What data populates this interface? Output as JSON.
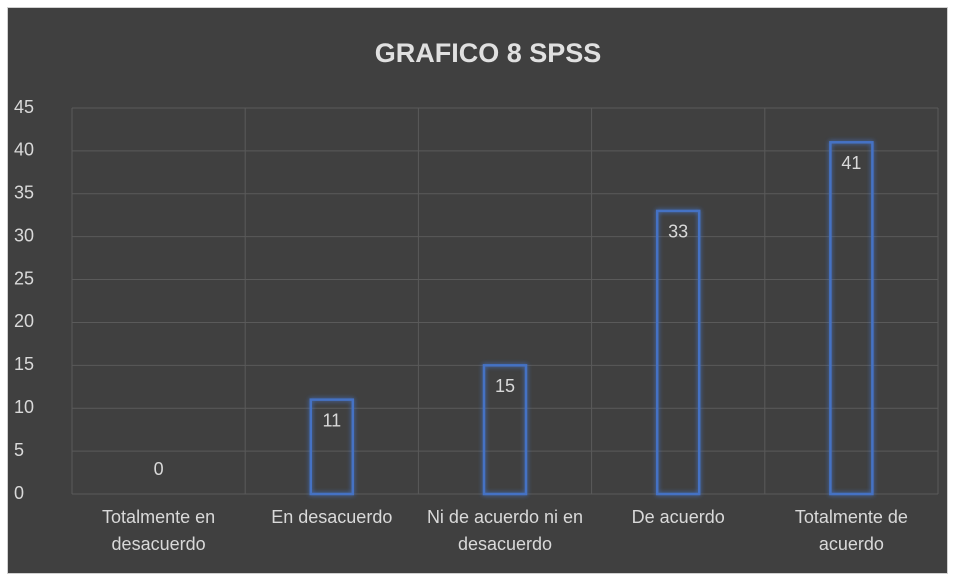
{
  "chart_data": {
    "type": "bar",
    "title": "GRAFICO 8 SPSS",
    "categories": [
      "Totalmente en desacuerdo",
      "En desacuerdo",
      "Ni de acuerdo ni en desacuerdo",
      "De acuerdo",
      "Totalmente de acuerdo"
    ],
    "values": [
      0,
      11,
      15,
      33,
      41
    ],
    "color": "#4472c4",
    "ylim": [
      0,
      45
    ],
    "yticks": [
      0,
      5,
      10,
      15,
      20,
      25,
      30,
      35,
      40,
      45
    ],
    "grid": true
  }
}
